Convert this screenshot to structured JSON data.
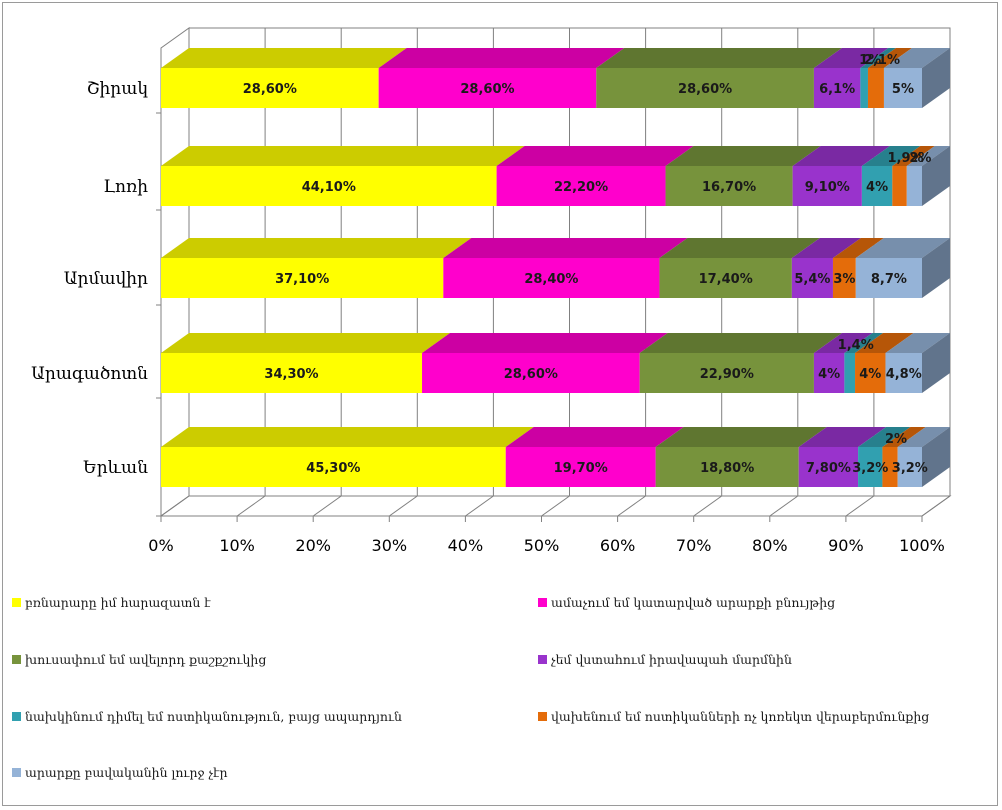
{
  "chart_data": {
    "type": "bar",
    "orientation": "horizontal",
    "stacked": "percent",
    "three_d": true,
    "categories": [
      "Շիրակ",
      "Լոռի",
      "Արմավիր",
      "Արագածոտն",
      "Երևան"
    ],
    "series": [
      {
        "name": "բռնարարը իմ հարազատն է",
        "color": "#FFFF00",
        "values": [
          28.6,
          44.1,
          37.1,
          34.3,
          45.3
        ],
        "labels": [
          "28,60%",
          "44,10%",
          "37,10%",
          "34,30%",
          "45,30%"
        ]
      },
      {
        "name": "ամաչում եմ կատարված արարքի բնույթից",
        "color": "#FF00CC",
        "values": [
          28.6,
          22.2,
          28.4,
          28.6,
          19.7
        ],
        "labels": [
          "28,60%",
          "22,20%",
          "28,40%",
          "28,60%",
          "19,70%"
        ]
      },
      {
        "name": "խուսափում եմ ավելորդ քաշքշուկից",
        "color": "#77933C",
        "values": [
          28.6,
          16.7,
          17.4,
          22.9,
          18.8
        ],
        "labels": [
          "28,60%",
          "16,70%",
          "17,40%",
          "22,90%",
          "18,80%"
        ]
      },
      {
        "name": "չեմ վստահում իրավապահ մարմնին",
        "color": "#9933CC",
        "values": [
          6.1,
          9.1,
          5.4,
          4,
          7.8
        ],
        "labels": [
          "6,1%",
          "9,10%",
          "5,4%",
          "4%",
          "7,80%"
        ]
      },
      {
        "name": "նախկինում դիմել եմ ոստիկանություն, բայց ապարդյուն",
        "color": "#31A0B0",
        "values": [
          1,
          4,
          0,
          1.4,
          3.2
        ],
        "labels": [
          "1%",
          "4%",
          "",
          "1,4%",
          "3,2%"
        ]
      },
      {
        "name": "վախենում եմ ոստիկանների ոչ կոռեկտ վերաբերմունքից",
        "color": "#E46C0A",
        "values": [
          2.1,
          1.9,
          3,
          4,
          2
        ],
        "labels": [
          "2,1%",
          "1,9%",
          "3%",
          "4%",
          "2%"
        ]
      },
      {
        "name": "արարքը բավականին լուրջ չէր",
        "color": "#95B3D7",
        "values": [
          5,
          2,
          8.7,
          4.8,
          3.2
        ],
        "labels": [
          "5%",
          "2%",
          "8,7%",
          "4,8%",
          "3,2%"
        ]
      }
    ],
    "xaxis": {
      "ticks": [
        "0%",
        "10%",
        "20%",
        "30%",
        "40%",
        "50%",
        "60%",
        "70%",
        "80%",
        "90%",
        "100%"
      ],
      "range": [
        0,
        100
      ]
    },
    "grid": true,
    "legend": "bottom"
  }
}
